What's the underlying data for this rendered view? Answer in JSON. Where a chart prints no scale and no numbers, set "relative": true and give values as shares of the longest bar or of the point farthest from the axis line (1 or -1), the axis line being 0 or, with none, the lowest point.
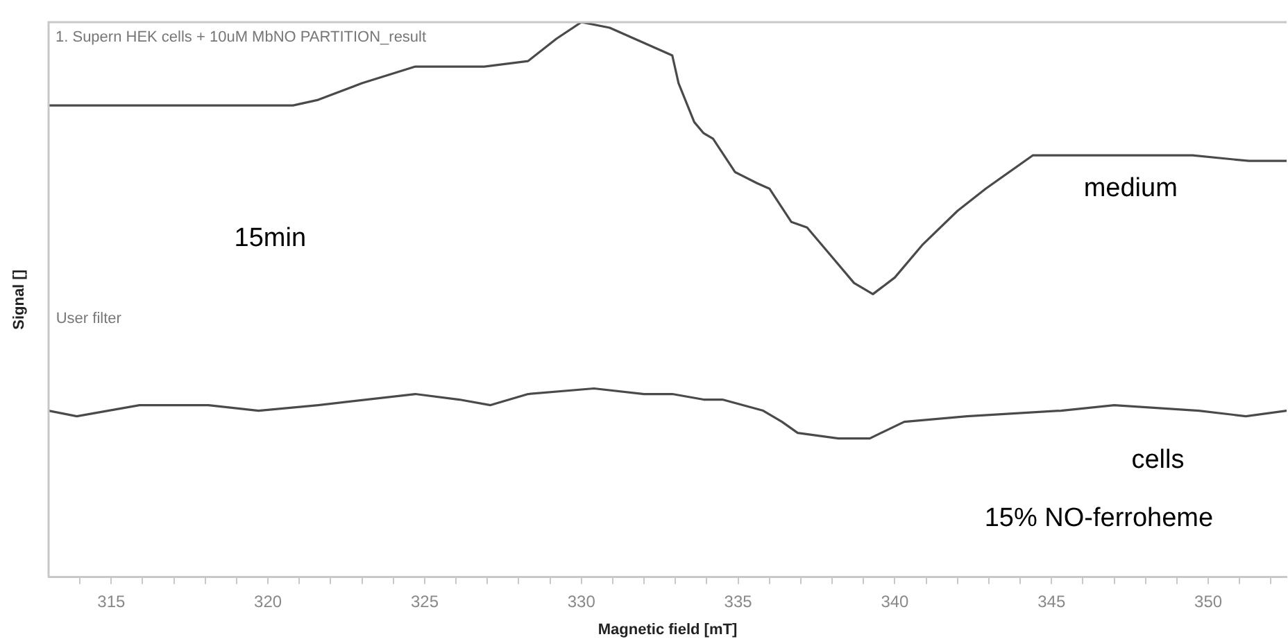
{
  "chart_data": {
    "type": "line",
    "title": "1. Supern HEK cells + 10uM MbNO PARTITION_result",
    "xlabel": "Magnetic field [mT]",
    "ylabel": "Signal []",
    "relative": true,
    "legend": false,
    "grid": false,
    "marker": "none",
    "line_style": "solid",
    "annotations": [
      "User filter",
      "15min",
      "15% NO-ferroheme"
    ],
    "xlim": [
      313,
      352.5
    ],
    "xticks": [
      {
        "value": 314,
        "label": null
      },
      315,
      {
        "value": 316,
        "label": null
      },
      {
        "value": 317,
        "label": null
      },
      {
        "value": 318,
        "label": null
      },
      {
        "value": 319,
        "label": null
      },
      320,
      {
        "value": 321,
        "label": null
      },
      {
        "value": 322,
        "label": null
      },
      {
        "value": 323,
        "label": null
      },
      {
        "value": 324,
        "label": null
      },
      325,
      {
        "value": 326,
        "label": null
      },
      {
        "value": 327,
        "label": null
      },
      {
        "value": 328,
        "label": null
      },
      {
        "value": 329,
        "label": null
      },
      330,
      {
        "value": 331,
        "label": null
      },
      {
        "value": 332,
        "label": null
      },
      {
        "value": 333,
        "label": null
      },
      {
        "value": 334,
        "label": null
      },
      335,
      {
        "value": 336,
        "label": null
      },
      {
        "value": 337,
        "label": null
      },
      {
        "value": 338,
        "label": null
      },
      {
        "value": 339,
        "label": null
      },
      340,
      {
        "value": 341,
        "label": null
      },
      {
        "value": 342,
        "label": null
      },
      {
        "value": 343,
        "label": null
      },
      {
        "value": 344,
        "label": null
      },
      345,
      {
        "value": 346,
        "label": null
      },
      {
        "value": 347,
        "label": null
      },
      {
        "value": 348,
        "label": null
      },
      {
        "value": 349,
        "label": null
      },
      350,
      {
        "value": 351,
        "label": null
      },
      {
        "value": 352,
        "label": null
      }
    ],
    "series": [
      {
        "name": "medium",
        "color": "#4a4a4a",
        "x": [
          313.0,
          314.1,
          315.9,
          317.7,
          319.4,
          320.8,
          321.6,
          323.0,
          324.7,
          326.9,
          328.3,
          329.2,
          330.0,
          330.9,
          332.1,
          332.9,
          333.1,
          333.6,
          333.9,
          334.2,
          334.9,
          335.6,
          336.0,
          336.7,
          337.2,
          337.8,
          338.7,
          339.3,
          340.0,
          340.9,
          342.0,
          342.9,
          344.4,
          345.8,
          347.7,
          349.5,
          351.3,
          352.5
        ],
        "values": [
          0.85,
          0.85,
          0.85,
          0.85,
          0.85,
          0.85,
          0.86,
          0.89,
          0.92,
          0.92,
          0.93,
          0.97,
          1.0,
          0.99,
          0.96,
          0.94,
          0.89,
          0.82,
          0.8,
          0.79,
          0.73,
          0.71,
          0.7,
          0.64,
          0.63,
          0.59,
          0.53,
          0.51,
          0.54,
          0.6,
          0.66,
          0.7,
          0.76,
          0.76,
          0.76,
          0.76,
          0.75,
          0.75
        ]
      },
      {
        "name": "cells",
        "color": "#4a4a4a",
        "x": [
          313.0,
          313.9,
          315.9,
          318.1,
          319.7,
          321.6,
          324.7,
          326.1,
          327.1,
          328.3,
          330.4,
          332.0,
          332.9,
          333.9,
          334.5,
          335.8,
          336.4,
          336.9,
          338.2,
          339.2,
          340.3,
          342.3,
          345.3,
          347.0,
          349.7,
          351.2,
          352.5
        ],
        "values": [
          0.3,
          0.29,
          0.31,
          0.31,
          0.3,
          0.31,
          0.33,
          0.32,
          0.31,
          0.33,
          0.34,
          0.33,
          0.33,
          0.32,
          0.32,
          0.3,
          0.28,
          0.26,
          0.25,
          0.25,
          0.28,
          0.29,
          0.3,
          0.31,
          0.3,
          0.29,
          0.3
        ]
      }
    ]
  }
}
